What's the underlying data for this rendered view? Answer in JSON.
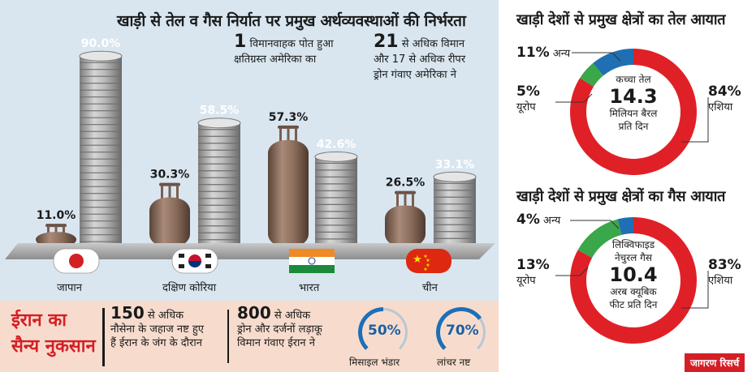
{
  "left": {
    "title": "खाड़ी से तेल व गैस निर्यात पर प्रमुख अर्थव्यवस्थाओं की निर्भरता",
    "note1": {
      "number": "1",
      "text_line1": "विमानवाहक पोत हुआ",
      "text_line2": "क्षतिग्रस्त अमेरिका का"
    },
    "note2": {
      "number": "21",
      "text_line1": "से अधिक विमान",
      "text_line2": "और 17 से अधिक रीपर",
      "text_line3": "ड्रोन गंवाए अमेरिका ने"
    }
  },
  "chart_data": [
    {
      "type": "bar",
      "title": "खाड़ी से तेल व गैस निर्यात पर प्रमुख अर्थव्यवस्थाओं की निर्भरता",
      "categories": [
        "जापान",
        "दक्षिण कोरिया",
        "भारत",
        "चीन"
      ],
      "series": [
        {
          "name": "gas",
          "values": [
            11.0,
            30.3,
            57.3,
            26.5
          ],
          "labels": [
            "11.0%",
            "30.3%",
            "57.3%",
            "26.5%"
          ]
        },
        {
          "name": "oil",
          "values": [
            90.0,
            58.5,
            42.6,
            33.1
          ],
          "labels": [
            "90.0%",
            "58.5%",
            "42.6%",
            "33.1%"
          ]
        }
      ],
      "flags": [
        "japan",
        "south-korea",
        "india",
        "china"
      ],
      "ylim": [
        0,
        100
      ]
    },
    {
      "type": "pie",
      "title": "खाड़ी देशों से प्रमुख क्षेत्रों का तेल आयात",
      "categories": [
        "एशिया",
        "यूरोप",
        "अन्य"
      ],
      "values": [
        84,
        5,
        11
      ],
      "labels": [
        "84%",
        "5%",
        "11%"
      ],
      "colors": [
        "#e02027",
        "#3aa74a",
        "#1f6fb2"
      ],
      "center": {
        "line1": "कच्चा तेल",
        "value": "14.3",
        "line2": "मिलियन बैरल",
        "line3": "प्रति दिन"
      }
    },
    {
      "type": "pie",
      "title": "खाड़ी देशों से प्रमुख क्षेत्रों का गैस आयात",
      "categories": [
        "एशिया",
        "यूरोप",
        "अन्य"
      ],
      "values": [
        83,
        13,
        4
      ],
      "labels": [
        "83%",
        "13%",
        "4%"
      ],
      "colors": [
        "#e02027",
        "#3aa74a",
        "#1f6fb2"
      ],
      "center": {
        "line1": "लिक्विफाइड",
        "line2": "नेचुरल गैस",
        "value": "10.4",
        "line3": "अरब क्यूबिक",
        "line4": "फीट प्रति दिन"
      }
    },
    {
      "type": "pie",
      "title": "मिसाइल भंडार",
      "values": [
        50
      ],
      "labels": [
        "50%"
      ],
      "colors": [
        "#1d6fb8"
      ]
    },
    {
      "type": "pie",
      "title": "लांचर नष्ट",
      "values": [
        70
      ],
      "labels": [
        "70%"
      ],
      "colors": [
        "#1d6fb8"
      ]
    }
  ],
  "bottom": {
    "title_line1": "ईरान का",
    "title_line2": "सैन्य नुकसान",
    "stat1": {
      "number": "150",
      "line1": "से अधिक",
      "line2": "नौसेना के जहाज नष्ट हुए",
      "line3": "हैं ईरान के जंग के दौरान"
    },
    "stat2": {
      "number": "800",
      "line1": "से अधिक",
      "line2": "ड्रोन और दर्जनों लड़ाकू",
      "line3": "विमान गंवाए ईरान ने"
    }
  },
  "brand": "जागरण रिसर्च",
  "colors": {
    "red": "#e02027",
    "green": "#3aa74a",
    "blue": "#1f6fb2",
    "panel_blue": "#d9e6f0",
    "panel_peach": "#f7dccd",
    "gauge_blue": "#1d6fb8"
  }
}
